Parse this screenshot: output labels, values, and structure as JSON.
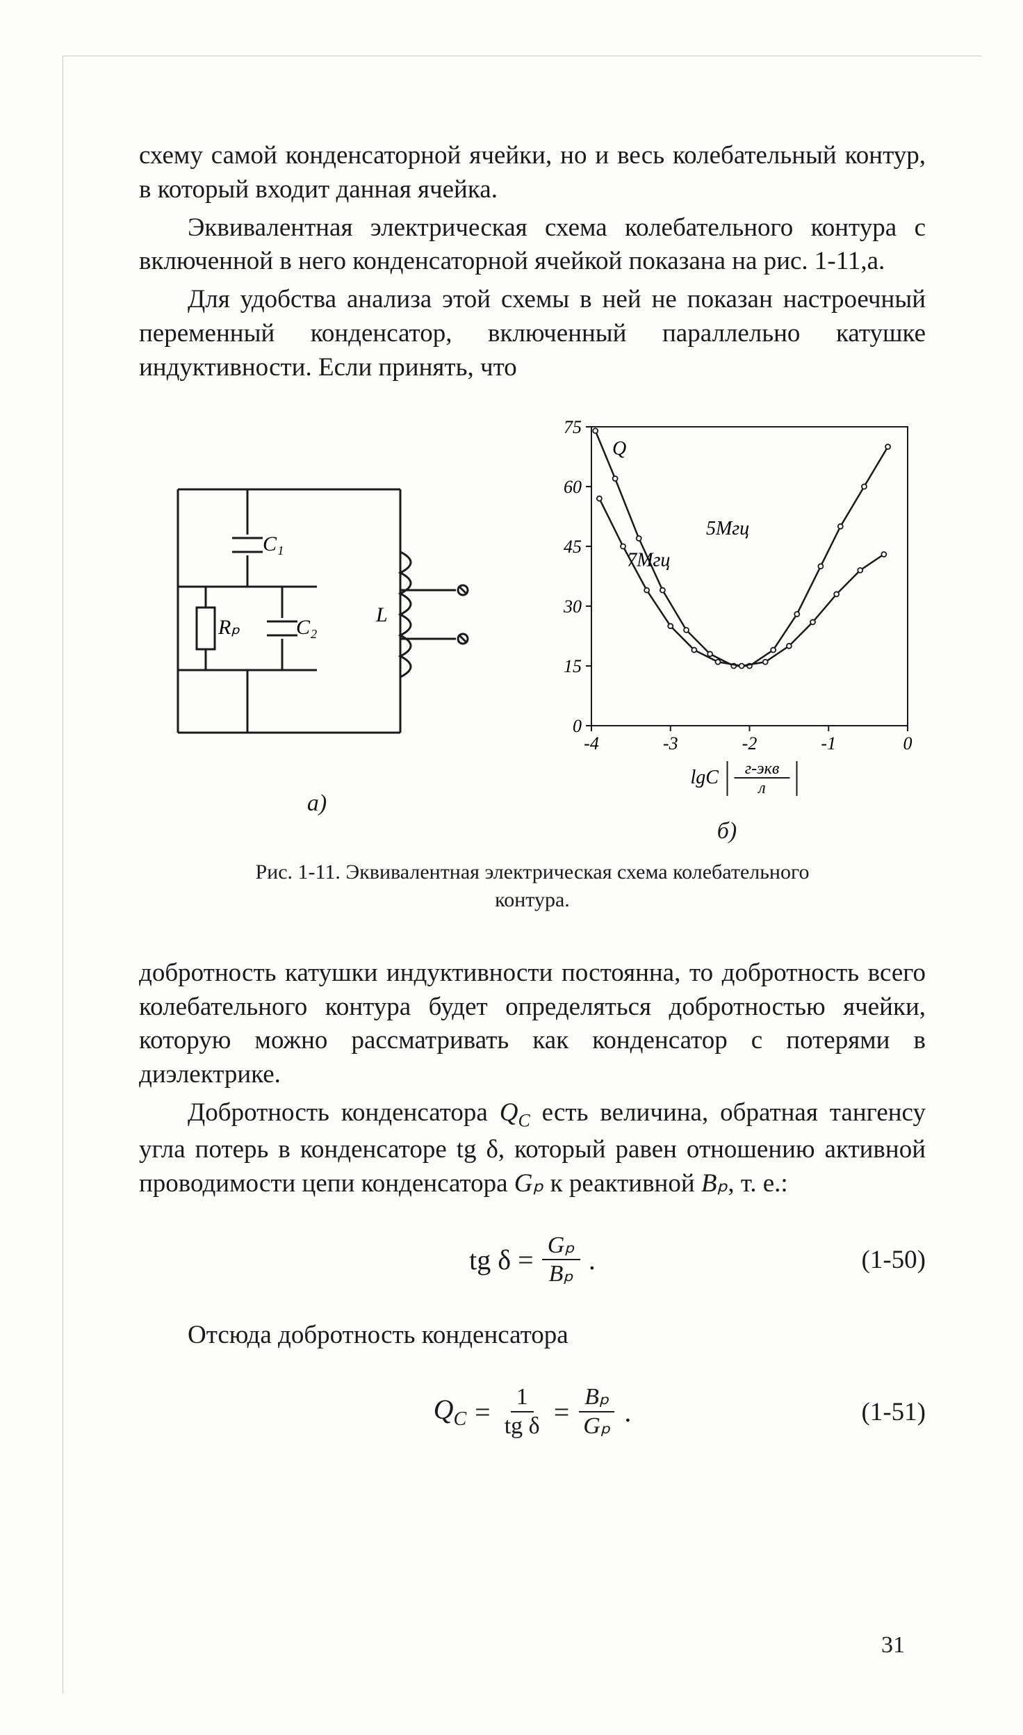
{
  "paragraphs": {
    "p1": "схему самой конденсаторной ячейки, но и весь колебательный контур, в который входит данная ячейка.",
    "p2": "Эквивалентная электрическая схема колебательного контура с включенной в него конденсаторной ячейкой показана на рис. 1-11,а.",
    "p3": "Для удобства анализа этой схемы в ней не показан настроечный переменный конденсатор, включенный параллельно катушке индуктивности. Если принять, что",
    "p4": "добротность катушки индуктивности постоянна, то добротность всего колебательного контура будет определяться добротностью ячейки, которую можно рассматривать как конденсатор с потерями в диэлектрике.",
    "p5_a": "Добротность конденсатора ",
    "p5_b": " есть величина, обратная тангенсу угла потерь в конденсаторе tg δ, который равен отношению активной проводимости цепи конденсатора ",
    "p5_c": " к реактивной ",
    "p5_d": ", т. е.:",
    "p6": "Отсюда добротность конденсатора"
  },
  "figure": {
    "caption": "Рис. 1-11. Эквивалентная электрическая схема колебательного контура.",
    "sub_a": "а)",
    "sub_b": "б)",
    "circuit": {
      "labels": {
        "C1": "C₁",
        "C2": "C₂",
        "Rp": "Rₚ",
        "L": "L"
      },
      "stroke": "#1a1a1a",
      "line_width": 3
    },
    "chart": {
      "type": "line",
      "title_axis_y": "Q",
      "x_label": "lgC",
      "x_label_frac_top": "г-экв",
      "x_label_frac_bot": "л",
      "xlim": [
        -4,
        0
      ],
      "ylim": [
        0,
        75
      ],
      "xticks": [
        -4,
        -3,
        -2,
        -1,
        0
      ],
      "yticks": [
        0,
        15,
        30,
        45,
        60,
        75
      ],
      "series": [
        {
          "name": "5Мгц",
          "label_pos": {
            "x": -2.55,
            "y": 48
          },
          "points": [
            {
              "x": -3.95,
              "y": 74
            },
            {
              "x": -3.7,
              "y": 62
            },
            {
              "x": -3.4,
              "y": 47
            },
            {
              "x": -3.1,
              "y": 34
            },
            {
              "x": -2.8,
              "y": 24
            },
            {
              "x": -2.5,
              "y": 18
            },
            {
              "x": -2.2,
              "y": 15
            },
            {
              "x": -2.0,
              "y": 15
            },
            {
              "x": -1.7,
              "y": 19
            },
            {
              "x": -1.4,
              "y": 28
            },
            {
              "x": -1.1,
              "y": 40
            },
            {
              "x": -0.85,
              "y": 50
            },
            {
              "x": -0.55,
              "y": 60
            },
            {
              "x": -0.25,
              "y": 70
            }
          ]
        },
        {
          "name": "7Мгц",
          "label_pos": {
            "x": -3.55,
            "y": 40
          },
          "points": [
            {
              "x": -3.9,
              "y": 57
            },
            {
              "x": -3.6,
              "y": 45
            },
            {
              "x": -3.3,
              "y": 34
            },
            {
              "x": -3.0,
              "y": 25
            },
            {
              "x": -2.7,
              "y": 19
            },
            {
              "x": -2.4,
              "y": 16
            },
            {
              "x": -2.1,
              "y": 15
            },
            {
              "x": -1.8,
              "y": 16
            },
            {
              "x": -1.5,
              "y": 20
            },
            {
              "x": -1.2,
              "y": 26
            },
            {
              "x": -0.9,
              "y": 33
            },
            {
              "x": -0.6,
              "y": 39
            },
            {
              "x": -0.3,
              "y": 43
            }
          ]
        }
      ],
      "axis_color": "#1a1a1a",
      "marker_radius": 3.5,
      "line_width": 2.5,
      "tick_fontsize": 26,
      "label_fontsize": 28
    }
  },
  "equations": {
    "eq1": {
      "lhs": "tg δ =",
      "num": "Gₚ",
      "den": "Bₚ",
      "tail": ".",
      "number": "(1-50)"
    },
    "eq2": {
      "lhs_sym": "Q",
      "lhs_sub": "C",
      "eq": "=",
      "f1_num": "1",
      "f1_den": "tg δ",
      "mid": "=",
      "f2_num": "Bₚ",
      "f2_den": "Gₚ",
      "tail": ".",
      "number": "(1-51)"
    }
  },
  "inline": {
    "Qc_sym": "Q",
    "Qc_sub": "C",
    "Gp": "Gₚ",
    "Bp": "Bₚ"
  },
  "page_number": "31"
}
